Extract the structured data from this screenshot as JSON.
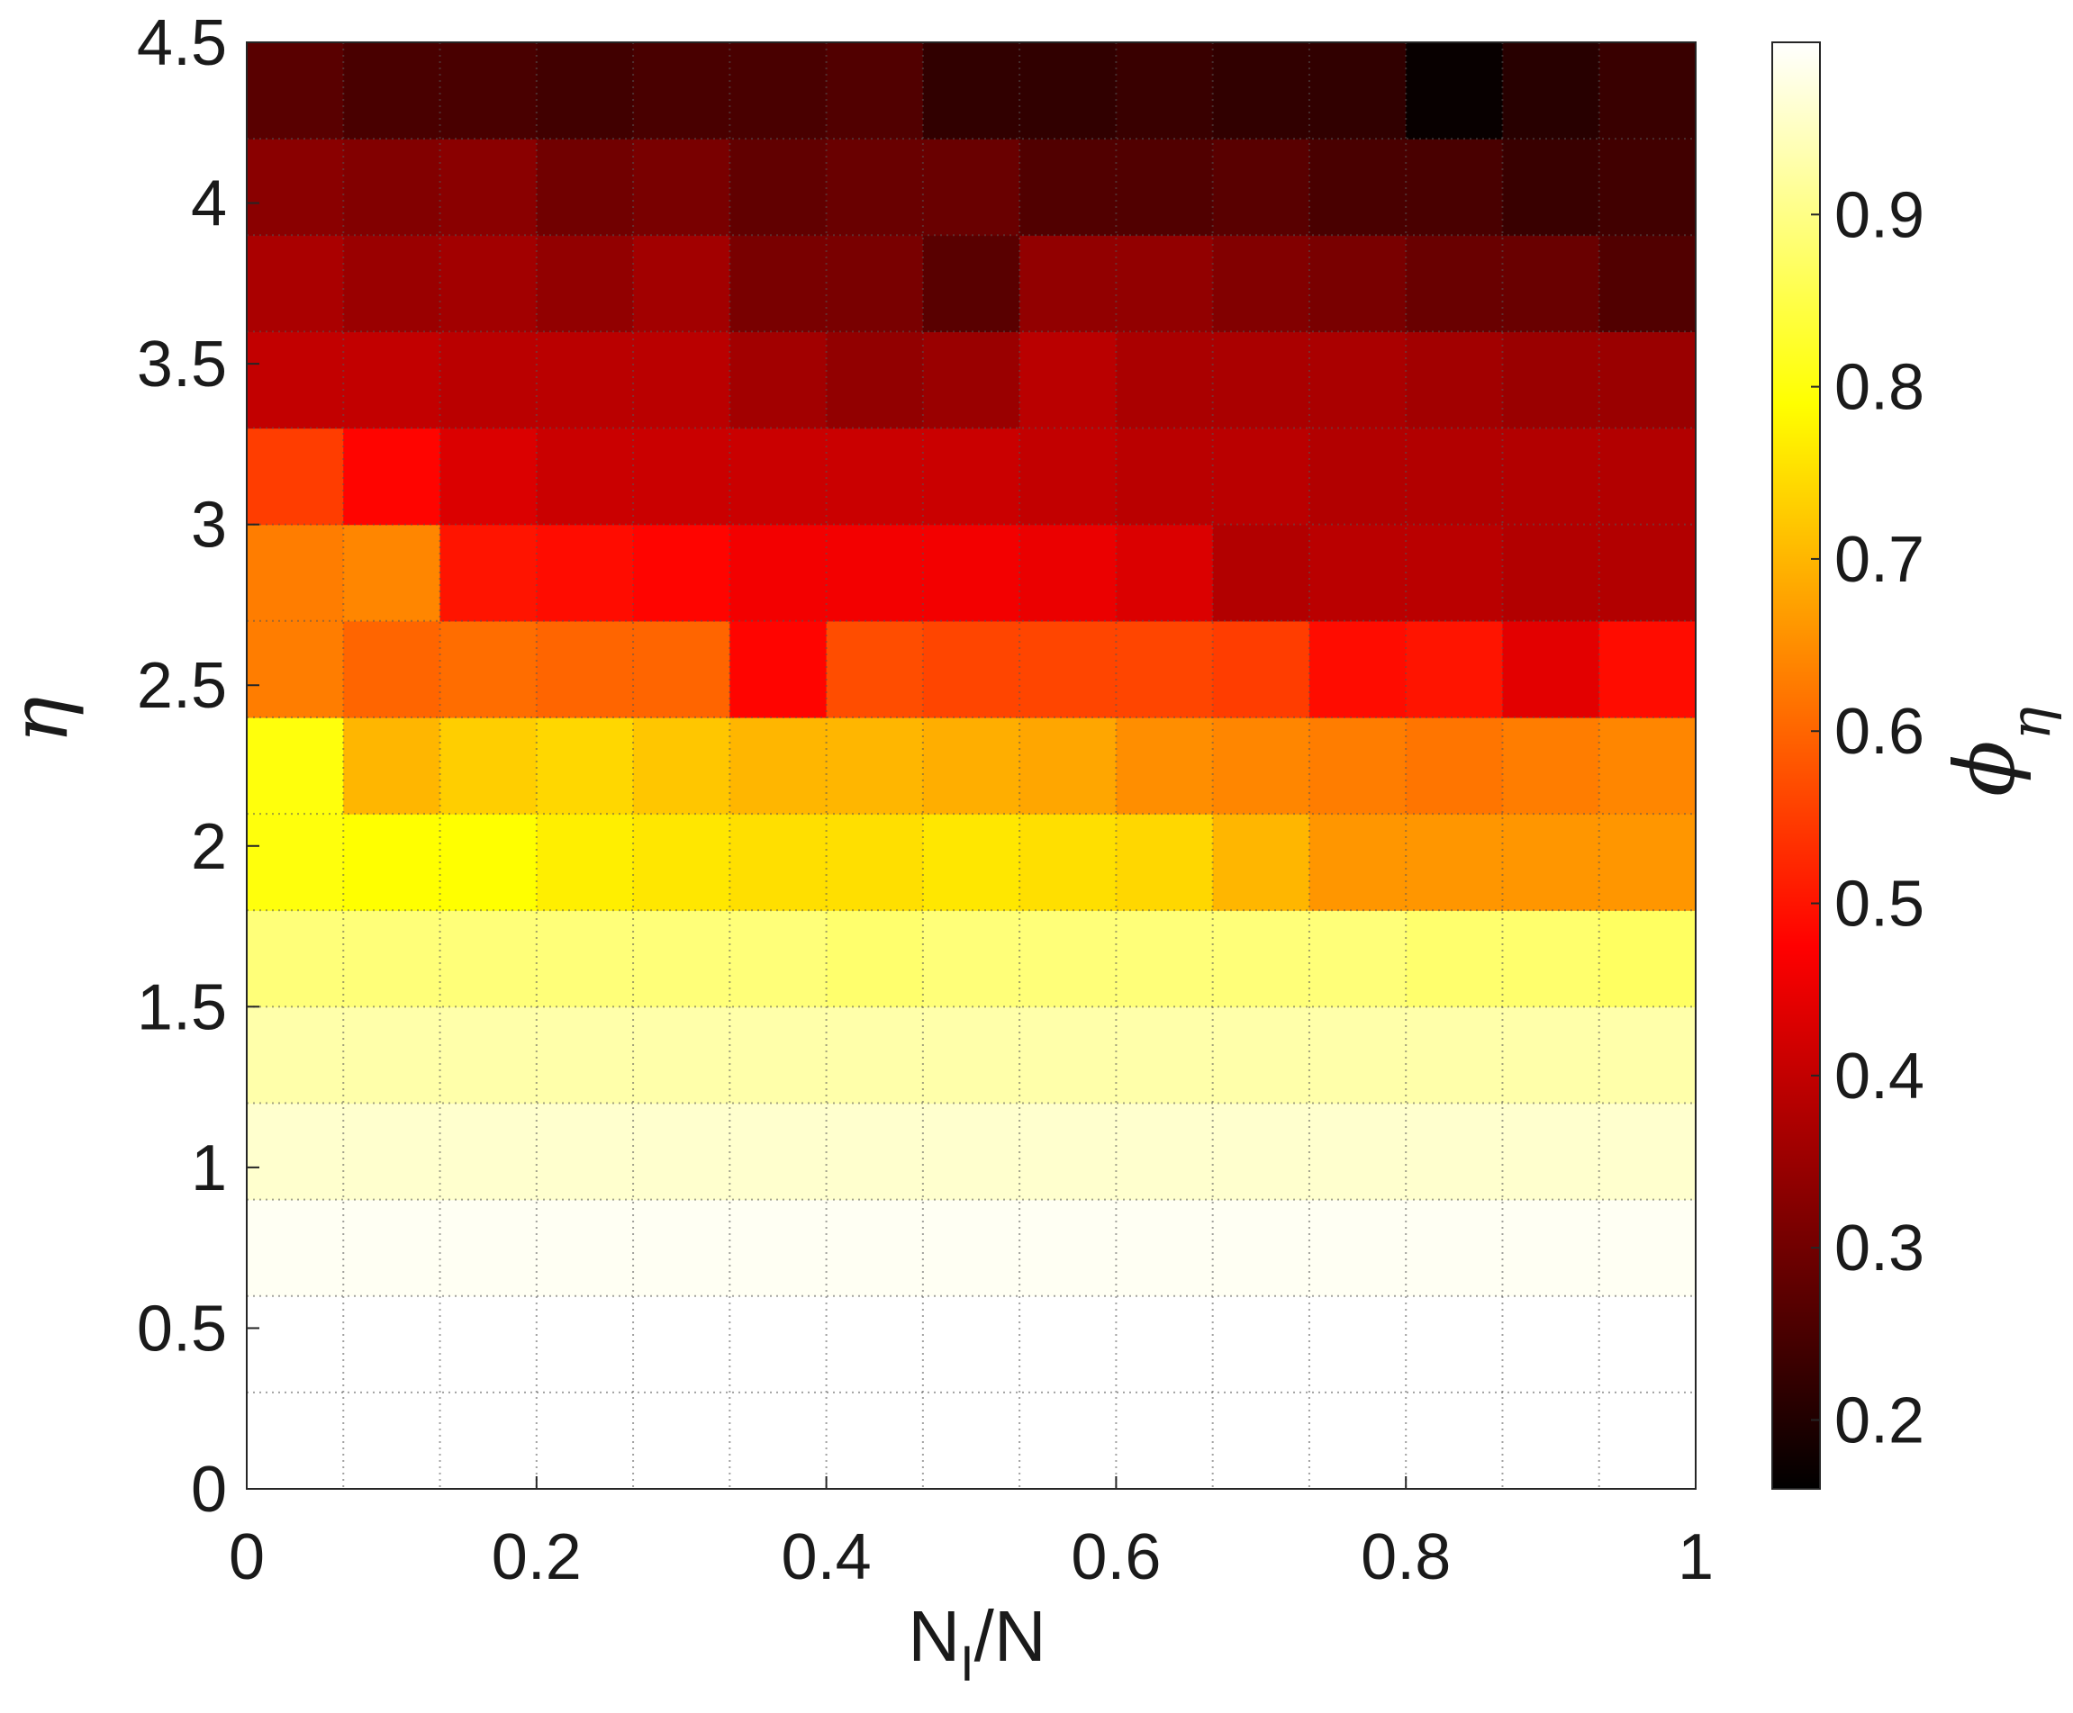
{
  "chart_data": {
    "type": "heatmap",
    "xlabel_main": "N",
    "xlabel_sub": "I",
    "xlabel_rest": "/N",
    "ylabel": "η",
    "colorbar_label_main": "ϕ",
    "colorbar_label_sub": "η",
    "xlim": [
      0,
      1
    ],
    "ylim": [
      0,
      4.5
    ],
    "x_ticks": [
      "0",
      "0.2",
      "0.4",
      "0.6",
      "0.8",
      "1"
    ],
    "y_ticks": [
      "0",
      "0.5",
      "1",
      "1.5",
      "2",
      "2.5",
      "3",
      "3.5",
      "4",
      "4.5"
    ],
    "colorbar_ticks": [
      "0.2",
      "0.3",
      "0.4",
      "0.5",
      "0.6",
      "0.7",
      "0.8",
      "0.9"
    ],
    "color_range": [
      0.16,
      1.0
    ],
    "colormap": "hot",
    "grid": "dotted",
    "n_cols": 15,
    "n_rows": 15,
    "y_step": 0.3,
    "rows_bottom_to_top": [
      [
        1.0,
        1.0,
        1.0,
        1.0,
        1.0,
        1.0,
        1.0,
        1.0,
        1.0,
        1.0,
        1.0,
        1.0,
        1.0,
        1.0,
        1.0
      ],
      [
        1.0,
        1.0,
        1.0,
        1.0,
        1.0,
        1.0,
        1.0,
        1.0,
        1.0,
        1.0,
        1.0,
        1.0,
        1.0,
        1.0,
        1.0
      ],
      [
        0.99,
        0.99,
        0.99,
        0.99,
        0.99,
        0.99,
        0.99,
        0.99,
        0.99,
        0.99,
        0.99,
        0.99,
        0.99,
        0.99,
        0.99
      ],
      [
        0.96,
        0.96,
        0.96,
        0.96,
        0.96,
        0.96,
        0.96,
        0.96,
        0.96,
        0.96,
        0.96,
        0.96,
        0.96,
        0.96,
        0.96
      ],
      [
        0.93,
        0.93,
        0.93,
        0.93,
        0.93,
        0.93,
        0.93,
        0.93,
        0.93,
        0.93,
        0.93,
        0.93,
        0.93,
        0.93,
        0.93
      ],
      [
        0.89,
        0.89,
        0.89,
        0.89,
        0.89,
        0.89,
        0.88,
        0.89,
        0.89,
        0.89,
        0.89,
        0.89,
        0.88,
        0.88,
        0.87
      ],
      [
        0.8,
        0.79,
        0.79,
        0.77,
        0.76,
        0.75,
        0.75,
        0.76,
        0.75,
        0.74,
        0.7,
        0.66,
        0.66,
        0.66,
        0.66
      ],
      [
        0.8,
        0.7,
        0.73,
        0.74,
        0.72,
        0.7,
        0.7,
        0.69,
        0.68,
        0.65,
        0.64,
        0.63,
        0.62,
        0.63,
        0.64
      ],
      [
        0.63,
        0.6,
        0.61,
        0.6,
        0.6,
        0.48,
        0.57,
        0.56,
        0.56,
        0.56,
        0.55,
        0.49,
        0.5,
        0.44,
        0.49
      ],
      [
        0.63,
        0.64,
        0.5,
        0.49,
        0.48,
        0.46,
        0.46,
        0.46,
        0.45,
        0.43,
        0.38,
        0.39,
        0.39,
        0.38,
        0.38
      ],
      [
        0.55,
        0.48,
        0.43,
        0.41,
        0.41,
        0.41,
        0.41,
        0.41,
        0.4,
        0.39,
        0.39,
        0.38,
        0.38,
        0.38,
        0.38
      ],
      [
        0.4,
        0.4,
        0.39,
        0.39,
        0.39,
        0.36,
        0.34,
        0.35,
        0.39,
        0.37,
        0.37,
        0.37,
        0.36,
        0.35,
        0.35
      ],
      [
        0.37,
        0.35,
        0.36,
        0.34,
        0.36,
        0.31,
        0.31,
        0.27,
        0.34,
        0.34,
        0.32,
        0.31,
        0.29,
        0.29,
        0.26
      ],
      [
        0.33,
        0.32,
        0.33,
        0.3,
        0.31,
        0.28,
        0.29,
        0.29,
        0.26,
        0.26,
        0.27,
        0.25,
        0.25,
        0.23,
        0.24
      ],
      [
        0.27,
        0.25,
        0.25,
        0.24,
        0.25,
        0.25,
        0.26,
        0.22,
        0.22,
        0.23,
        0.22,
        0.22,
        0.17,
        0.21,
        0.23
      ]
    ]
  }
}
